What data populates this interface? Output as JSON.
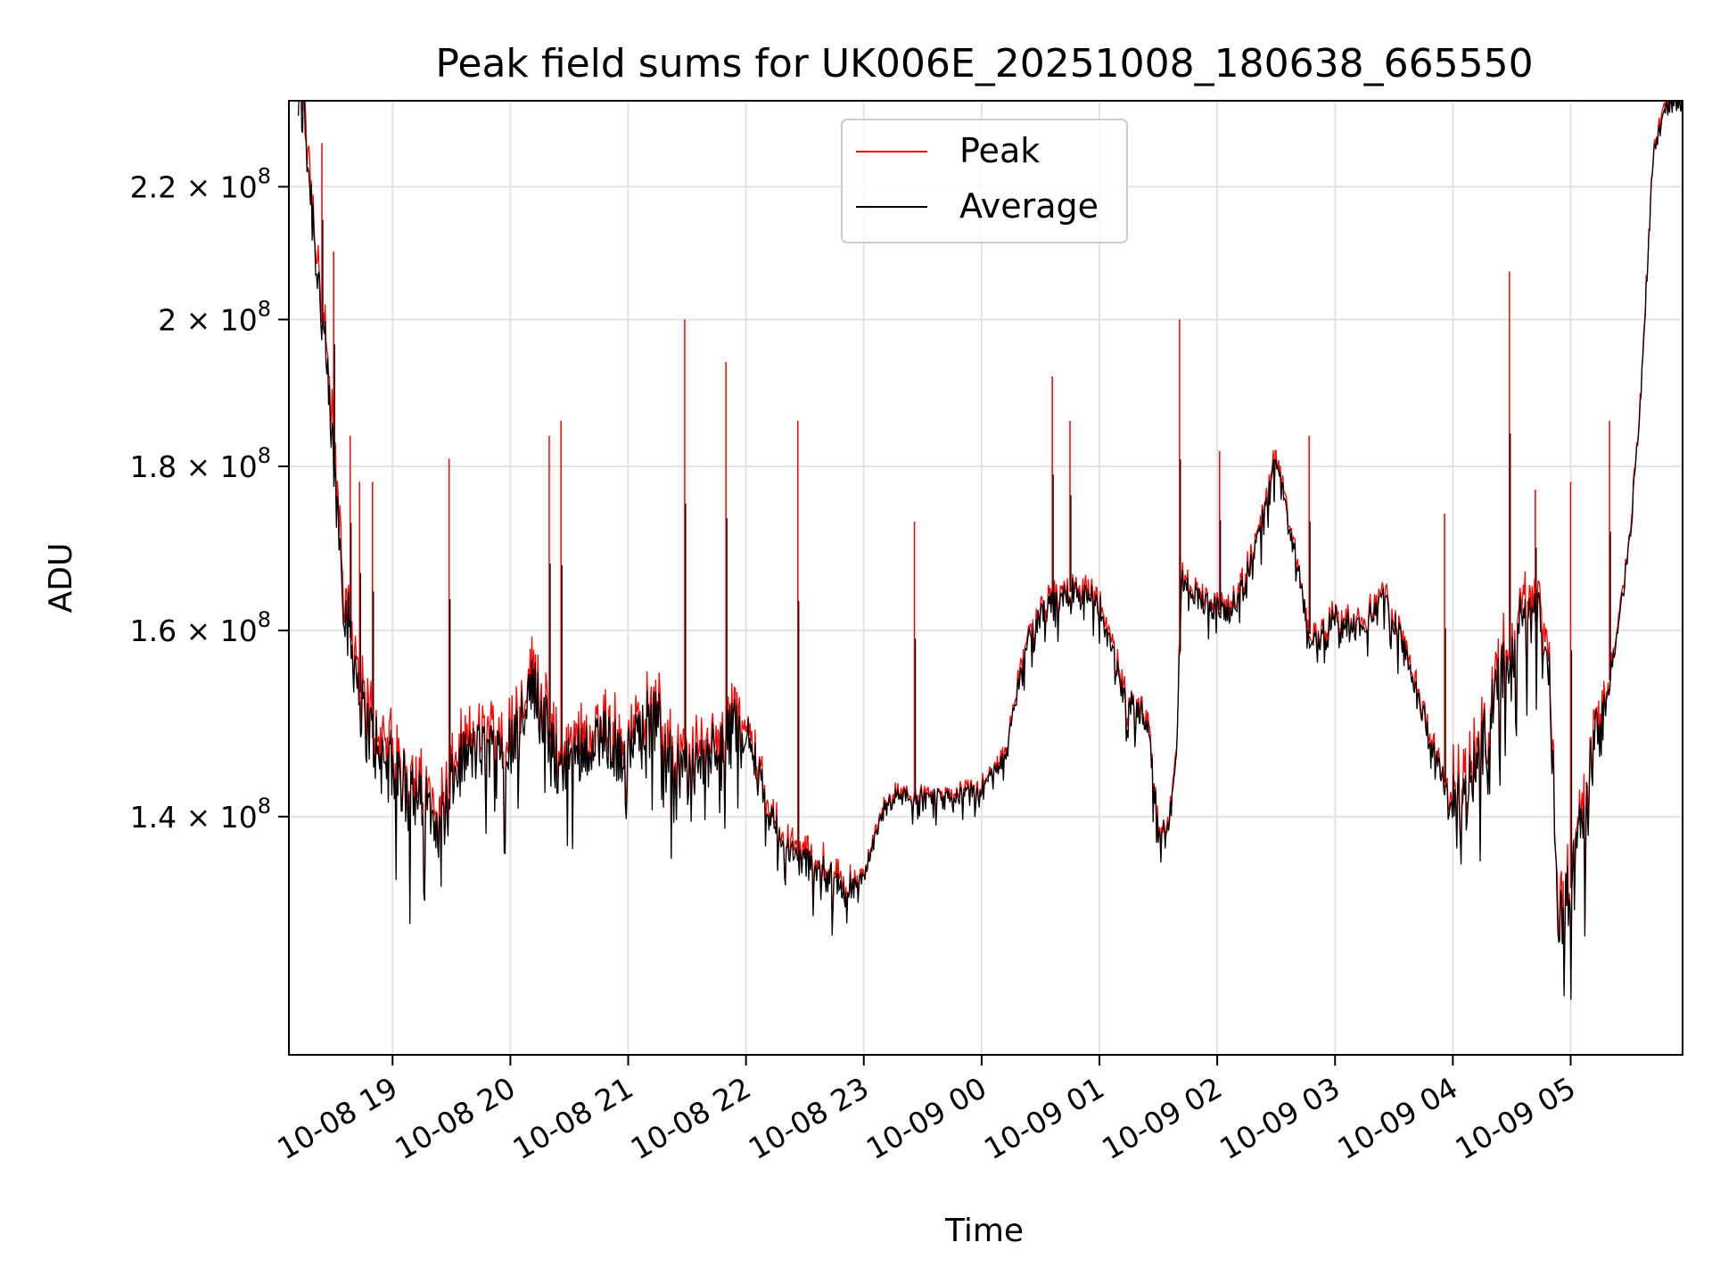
{
  "chart_data": {
    "type": "line",
    "title": "Peak field sums for UK006E_20251008_180638_665550",
    "xlabel": "Time",
    "ylabel": "ADU",
    "y_scale": "log",
    "ylim": [
      118000000,
      234000000
    ],
    "xlim_hours_from_start": [
      -0.88,
      10.95
    ],
    "grid": true,
    "legend_position": "top-center",
    "x_ticks": [
      {
        "label": "10-08 19",
        "hour": 0
      },
      {
        "label": "10-08 20",
        "hour": 1
      },
      {
        "label": "10-08 21",
        "hour": 2
      },
      {
        "label": "10-08 22",
        "hour": 3
      },
      {
        "label": "10-08 23",
        "hour": 4
      },
      {
        "label": "10-09 00",
        "hour": 5
      },
      {
        "label": "10-09 01",
        "hour": 6
      },
      {
        "label": "10-09 02",
        "hour": 7
      },
      {
        "label": "10-09 03",
        "hour": 8
      },
      {
        "label": "10-09 04",
        "hour": 9
      },
      {
        "label": "10-09 05",
        "hour": 10
      }
    ],
    "y_ticks": [
      {
        "value": 140000000,
        "mantissa": "1.4"
      },
      {
        "value": 160000000,
        "mantissa": "1.6"
      },
      {
        "value": 180000000,
        "mantissa": "1.8"
      },
      {
        "value": 200000000,
        "mantissa": "2"
      },
      {
        "value": 220000000,
        "mantissa": "2.2"
      }
    ],
    "y_tick_suffix": "× 10",
    "y_tick_exponent": "8",
    "series": [
      {
        "name": "Peak",
        "color": "#ff0000",
        "role": "peak"
      },
      {
        "name": "Average",
        "color": "#000000",
        "role": "average"
      }
    ],
    "average_envelope": {
      "hours": [
        -0.8,
        -0.75,
        -0.7,
        -0.6,
        -0.5,
        -0.4,
        -0.3,
        -0.25,
        -0.2,
        -0.1,
        0.0,
        0.2,
        0.4,
        0.6,
        0.8,
        1.0,
        1.2,
        1.4,
        1.6,
        1.8,
        2.0,
        2.2,
        2.4,
        2.6,
        2.8,
        3.0,
        3.2,
        3.4,
        3.6,
        3.8,
        4.0,
        4.2,
        4.4,
        4.6,
        4.8,
        5.0,
        5.2,
        5.4,
        5.6,
        5.8,
        6.0,
        6.2,
        6.4,
        6.5,
        6.6,
        6.65,
        6.7,
        6.9,
        7.1,
        7.3,
        7.5,
        7.7,
        7.8,
        8.0,
        8.2,
        8.4,
        8.6,
        8.8,
        9.0,
        9.2,
        9.4,
        9.5,
        9.6,
        9.8,
        9.9,
        10.0,
        10.2,
        10.3,
        10.4,
        10.5,
        10.6,
        10.7,
        10.8,
        10.95
      ],
      "values": [
        234000000,
        232000000,
        220000000,
        200000000,
        180000000,
        162000000,
        155000000,
        150000000,
        149000000,
        146000000,
        145000000,
        142000000,
        140000000,
        146000000,
        147000000,
        148000000,
        154000000,
        145000000,
        147000000,
        148000000,
        146000000,
        152000000,
        145000000,
        145000000,
        148000000,
        150000000,
        140000000,
        136000000,
        135000000,
        133000000,
        134000000,
        142000000,
        142000000,
        142000000,
        142000000,
        143000000,
        146000000,
        160000000,
        163000000,
        165000000,
        163000000,
        153000000,
        150000000,
        139000000,
        140000000,
        145000000,
        166000000,
        163000000,
        162000000,
        168000000,
        181000000,
        166000000,
        158000000,
        162000000,
        160000000,
        164000000,
        158000000,
        148000000,
        141000000,
        145000000,
        155000000,
        157000000,
        162000000,
        160000000,
        130000000,
        133000000,
        147000000,
        152000000,
        160000000,
        170000000,
        190000000,
        225000000,
        233000000,
        234000000
      ]
    },
    "peak_spikes": [
      {
        "hour": -0.6,
        "value": 227000000
      },
      {
        "hour": -0.5,
        "value": 210000000
      },
      {
        "hour": -0.36,
        "value": 184000000
      },
      {
        "hour": -0.28,
        "value": 178000000
      },
      {
        "hour": -0.17,
        "value": 178000000
      },
      {
        "hour": 0.48,
        "value": 181000000
      },
      {
        "hour": 1.33,
        "value": 184000000
      },
      {
        "hour": 1.43,
        "value": 186000000
      },
      {
        "hour": 2.48,
        "value": 200000000
      },
      {
        "hour": 2.83,
        "value": 194000000
      },
      {
        "hour": 3.44,
        "value": 186000000
      },
      {
        "hour": 4.43,
        "value": 173000000
      },
      {
        "hour": 5.6,
        "value": 192000000
      },
      {
        "hour": 5.75,
        "value": 186000000
      },
      {
        "hour": 6.68,
        "value": 200000000
      },
      {
        "hour": 7.02,
        "value": 182000000
      },
      {
        "hour": 7.78,
        "value": 184000000
      },
      {
        "hour": 8.93,
        "value": 174000000
      },
      {
        "hour": 9.48,
        "value": 207000000
      },
      {
        "hour": 9.7,
        "value": 177000000
      },
      {
        "hour": 10.0,
        "value": 178000000
      },
      {
        "hour": 10.33,
        "value": 186000000
      }
    ]
  }
}
